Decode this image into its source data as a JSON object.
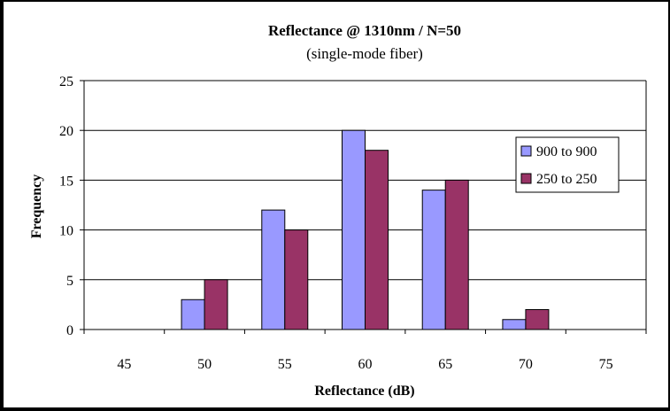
{
  "chart_data": {
    "type": "bar",
    "title": "Reflectance @ 1310nm / N=50",
    "subtitle": "(single-mode fiber)",
    "xlabel": "Reflectance (dB)",
    "ylabel": "Frequency",
    "categories": [
      "45",
      "50",
      "55",
      "60",
      "65",
      "70",
      "75"
    ],
    "series": [
      {
        "name": "900 to 900",
        "values": [
          0,
          3,
          12,
          20,
          14,
          1,
          0
        ],
        "color": "#9999ff"
      },
      {
        "name": "250 to 250",
        "values": [
          0,
          5,
          10,
          18,
          15,
          2,
          0
        ],
        "color": "#993366"
      }
    ],
    "ylim": [
      0,
      25
    ],
    "yticks": [
      0,
      5,
      10,
      15,
      20,
      25
    ],
    "grid": true,
    "legend_position": "right"
  }
}
